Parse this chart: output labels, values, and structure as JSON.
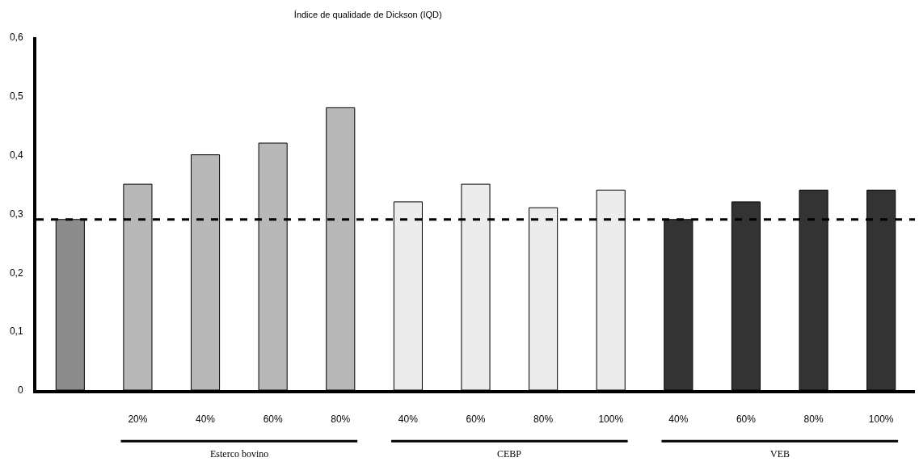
{
  "chart_data": {
    "type": "bar",
    "title": "Índice de qualidade de Dickson (IQD)",
    "categories": [
      null,
      "20%",
      "40%",
      "60%",
      "80%",
      "40%",
      "60%",
      "80%",
      "100%",
      "40%",
      "60%",
      "80%",
      "100%"
    ],
    "values": [
      0.29,
      0.35,
      0.4,
      0.42,
      0.48,
      0.32,
      0.35,
      0.31,
      0.34,
      0.29,
      0.32,
      0.34,
      0.34
    ],
    "colors": [
      "#8c8c8c",
      "#b8b8b8",
      "#b8b8b8",
      "#b8b8b8",
      "#b8b8b8",
      "#ececec",
      "#ececec",
      "#ececec",
      "#ececec",
      "#333333",
      "#333333",
      "#333333",
      "#333333"
    ],
    "ylim": [
      0,
      0.6
    ],
    "yticks": [
      {
        "value": 0,
        "label": "0"
      },
      {
        "value": 0.1,
        "label": "0,1"
      },
      {
        "value": 0.2,
        "label": "0,2"
      },
      {
        "value": 0.3,
        "label": "0,3"
      },
      {
        "value": 0.4,
        "label": "0,4"
      },
      {
        "value": 0.5,
        "label": "0,5"
      },
      {
        "value": 0.6,
        "label": "0,6"
      }
    ],
    "ref_lines": [
      {
        "axis": "y",
        "value": 0.29,
        "color": "#000000",
        "line_style": "dashed"
      }
    ],
    "annotations": [
      "Esterco bovino",
      "CEBP",
      "VEB"
    ],
    "legend": false
  }
}
